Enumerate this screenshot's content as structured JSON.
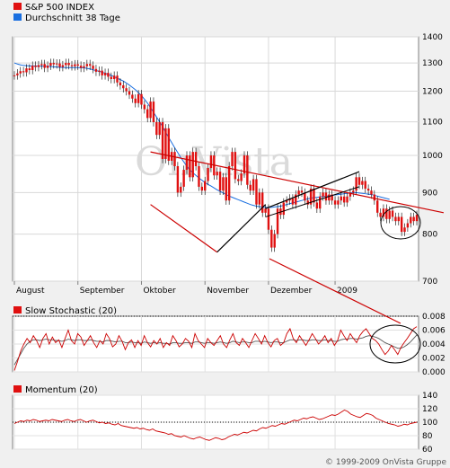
{
  "chart_data": [
    {
      "type": "candlestick",
      "title": "",
      "legend": [
        {
          "label": "S&P 500 INDEX",
          "color": "#e01010"
        },
        {
          "label": "Durchschnitt 38 Tage",
          "color": "#1a6fe0"
        }
      ],
      "legend_placement": "top-left",
      "x_labels": [
        "August",
        "September",
        "Oktober",
        "November",
        "Dezember",
        "2009"
      ],
      "y_scale": "log",
      "ylim": [
        700,
        1400
      ],
      "y_ticks": [
        700,
        800,
        900,
        1000,
        1100,
        1200,
        1300,
        1400
      ],
      "grid": true,
      "price_close": [
        1255,
        1262,
        1270,
        1266,
        1280,
        1274,
        1290,
        1285,
        1292,
        1296,
        1282,
        1290,
        1300,
        1295,
        1298,
        1285,
        1292,
        1300,
        1292,
        1288,
        1295,
        1290,
        1282,
        1288,
        1296,
        1290,
        1278,
        1268,
        1272,
        1255,
        1264,
        1250,
        1242,
        1254,
        1230,
        1220,
        1210,
        1200,
        1188,
        1175,
        1160,
        1190,
        1155,
        1140,
        1112,
        1165,
        1099,
        1060,
        1099,
        990,
        1080,
        985,
        1010,
        970,
        900,
        915,
        960,
        1000,
        940,
        1010,
        970,
        915,
        905,
        930,
        965,
        1000,
        945,
        955,
        905,
        940,
        880,
        970,
        1010,
        935,
        930,
        950,
        1000,
        920,
        905,
        935,
        870,
        900,
        850,
        860,
        810,
        770,
        800,
        860,
        845,
        875,
        880,
        885,
        870,
        895,
        905,
        900,
        880,
        870,
        910,
        875,
        860,
        890,
        900,
        880,
        895,
        880,
        870,
        880,
        890,
        875,
        890,
        900,
        905,
        940,
        920,
        930,
        910,
        905,
        895,
        880,
        850,
        840,
        860,
        835,
        855,
        840,
        830,
        840,
        805,
        815,
        825,
        840,
        830,
        845
      ],
      "ma38": [
        1300,
        1296,
        1293,
        1291,
        1290,
        1289,
        1289,
        1289,
        1288,
        1288,
        1288,
        1287,
        1287,
        1286,
        1285,
        1284,
        1284,
        1283,
        1283,
        1283,
        1283,
        1283,
        1282,
        1282,
        1280,
        1278,
        1275,
        1272,
        1270,
        1266,
        1263,
        1258,
        1255,
        1250,
        1245,
        1240,
        1235,
        1228,
        1221,
        1213,
        1205,
        1195,
        1185,
        1173,
        1160,
        1145,
        1130,
        1115,
        1100,
        1085,
        1068,
        1052,
        1037,
        1022,
        1008,
        994,
        982,
        970,
        960,
        952,
        945,
        938,
        932,
        926,
        921,
        917,
        912,
        907,
        903,
        899,
        895,
        891,
        888,
        885,
        882,
        879,
        876,
        873,
        870,
        868,
        866,
        865,
        864,
        863,
        863,
        863,
        864,
        865,
        866,
        868,
        870,
        872,
        874,
        876,
        878,
        880,
        882,
        884,
        886,
        887,
        888,
        889,
        890,
        891,
        892,
        893,
        894,
        895,
        896,
        897,
        898,
        899,
        900,
        900,
        899,
        898,
        897,
        896,
        895,
        893,
        891,
        889,
        887,
        885,
        883
      ],
      "trendlines": [
        {
          "from": [
            1010,
            "Oktober"
          ],
          "to": [
            850,
            "2009"
          ],
          "color": "#cc0000"
        },
        {
          "from": [
            870,
            "Oktober"
          ],
          "to": [
            760,
            "November"
          ],
          "color": "#cc0000"
        },
        {
          "from": [
            760,
            "November"
          ],
          "to": [
            870,
            "Dezember"
          ],
          "color": "#000000"
        },
        {
          "from": [
            860,
            "Dezember"
          ],
          "to": [
            955,
            "2009"
          ],
          "color": "#000000"
        }
      ]
    },
    {
      "type": "line",
      "title": "Slow Stochastic (20)",
      "legend_color": "#e01010",
      "ylim": [
        0,
        0.008
      ],
      "y_ticks": [
        0.0,
        0.002,
        0.004,
        0.006,
        0.008
      ],
      "y_tick_labels": [
        "0.000",
        "0.002",
        "0.004",
        "0.006",
        "0.008"
      ],
      "reference_line": 0.008,
      "series": [
        {
          "color": "#cc0000",
          "values": [
            0.0002,
            0.0015,
            0.003,
            0.004,
            0.0048,
            0.0042,
            0.0052,
            0.0045,
            0.0035,
            0.0048,
            0.0055,
            0.004,
            0.005,
            0.0042,
            0.0046,
            0.0035,
            0.0048,
            0.006,
            0.0045,
            0.004,
            0.0055,
            0.005,
            0.0038,
            0.0045,
            0.0052,
            0.0042,
            0.0035,
            0.0045,
            0.004,
            0.0055,
            0.0048,
            0.0036,
            0.004,
            0.0052,
            0.0044,
            0.0032,
            0.0042,
            0.0046,
            0.0035,
            0.0045,
            0.0038,
            0.0052,
            0.0042,
            0.0036,
            0.0045,
            0.004,
            0.0048,
            0.0035,
            0.0042,
            0.0038,
            0.0052,
            0.0045,
            0.0036,
            0.004,
            0.0048,
            0.0044,
            0.0035,
            0.0055,
            0.0045,
            0.004,
            0.0035,
            0.0048,
            0.0042,
            0.0038,
            0.0045,
            0.0052,
            0.004,
            0.0035,
            0.0046,
            0.0055,
            0.0042,
            0.0038,
            0.0048,
            0.0042,
            0.0035,
            0.0045,
            0.0055,
            0.0048,
            0.004,
            0.0052,
            0.0042,
            0.0036,
            0.0045,
            0.0048,
            0.0038,
            0.0042,
            0.0055,
            0.0062,
            0.0048,
            0.0042,
            0.0052,
            0.0045,
            0.0038,
            0.0046,
            0.0055,
            0.0048,
            0.004,
            0.0045,
            0.0052,
            0.0042,
            0.0048,
            0.0038,
            0.0045,
            0.006,
            0.0052,
            0.0045,
            0.0055,
            0.0048,
            0.0042,
            0.0052,
            0.0058,
            0.0062,
            0.0055,
            0.0048,
            0.0045,
            0.004,
            0.0032,
            0.0025,
            0.003,
            0.0038,
            0.0032,
            0.0025,
            0.0035,
            0.0042,
            0.0048,
            0.0055,
            0.0062,
            0.0065
          ]
        },
        {
          "color": "#555555",
          "values": [
            0.001,
            0.0018,
            0.0026,
            0.0034,
            0.004,
            0.0044,
            0.0046,
            0.0046,
            0.0045,
            0.0046,
            0.0047,
            0.0046,
            0.0046,
            0.0045,
            0.0045,
            0.0044,
            0.0045,
            0.0047,
            0.0046,
            0.0045,
            0.0046,
            0.0046,
            0.0045,
            0.0045,
            0.0046,
            0.0045,
            0.0044,
            0.0044,
            0.0043,
            0.0045,
            0.0045,
            0.0044,
            0.0043,
            0.0044,
            0.0044,
            0.0042,
            0.0042,
            0.0043,
            0.0042,
            0.0042,
            0.0041,
            0.0043,
            0.0042,
            0.0041,
            0.0042,
            0.0041,
            0.0042,
            0.0041,
            0.0041,
            0.004,
            0.0042,
            0.0042,
            0.0041,
            0.0041,
            0.0042,
            0.0042,
            0.0041,
            0.0043,
            0.0043,
            0.0042,
            0.0041,
            0.0042,
            0.0042,
            0.0041,
            0.0042,
            0.0043,
            0.0042,
            0.0041,
            0.0042,
            0.0044,
            0.0043,
            0.0042,
            0.0043,
            0.0043,
            0.0042,
            0.0042,
            0.0044,
            0.0044,
            0.0043,
            0.0044,
            0.0043,
            0.0042,
            0.0043,
            0.0043,
            0.0042,
            0.0042,
            0.0044,
            0.0046,
            0.0046,
            0.0045,
            0.0046,
            0.0046,
            0.0045,
            0.0045,
            0.0046,
            0.0046,
            0.0045,
            0.0045,
            0.0046,
            0.0045,
            0.0045,
            0.0044,
            0.0044,
            0.0046,
            0.0047,
            0.0047,
            0.0048,
            0.0048,
            0.0047,
            0.0048,
            0.0049,
            0.0051,
            0.0052,
            0.0051,
            0.005,
            0.0048,
            0.0045,
            0.0042,
            0.004,
            0.0038,
            0.0036,
            0.0034,
            0.0034,
            0.0036,
            0.0039,
            0.0043,
            0.0048,
            0.0053
          ]
        }
      ]
    },
    {
      "type": "line",
      "title": "Momentum (20)",
      "legend_color": "#e01010",
      "ylim": [
        60,
        140
      ],
      "y_ticks": [
        60,
        80,
        100,
        120,
        140
      ],
      "reference_line": 100,
      "series": [
        {
          "color": "#cc0000",
          "values": [
            98,
            100,
            102,
            101,
            103,
            102,
            104,
            103,
            101,
            102,
            103,
            102,
            104,
            103,
            102,
            101,
            103,
            104,
            102,
            101,
            103,
            104,
            102,
            100,
            102,
            103,
            101,
            99,
            100,
            98,
            99,
            97,
            96,
            98,
            95,
            94,
            93,
            92,
            91,
            92,
            90,
            91,
            89,
            88,
            90,
            87,
            86,
            85,
            84,
            82,
            83,
            80,
            79,
            78,
            80,
            78,
            76,
            75,
            77,
            78,
            76,
            74,
            73,
            75,
            77,
            76,
            74,
            75,
            78,
            80,
            82,
            81,
            83,
            85,
            84,
            86,
            88,
            87,
            90,
            92,
            91,
            93,
            95,
            94,
            96,
            98,
            97,
            99,
            101,
            103,
            102,
            104,
            106,
            105,
            107,
            108,
            106,
            104,
            105,
            107,
            109,
            111,
            110,
            112,
            115,
            118,
            116,
            112,
            110,
            108,
            107,
            110,
            113,
            112,
            110,
            106,
            104,
            102,
            100,
            98,
            97,
            96,
            94,
            95,
            97,
            96,
            98,
            99,
            100
          ]
        }
      ]
    }
  ],
  "watermark": "OnVista",
  "copyright": "© 1999-2009 OnVista Gruppe"
}
